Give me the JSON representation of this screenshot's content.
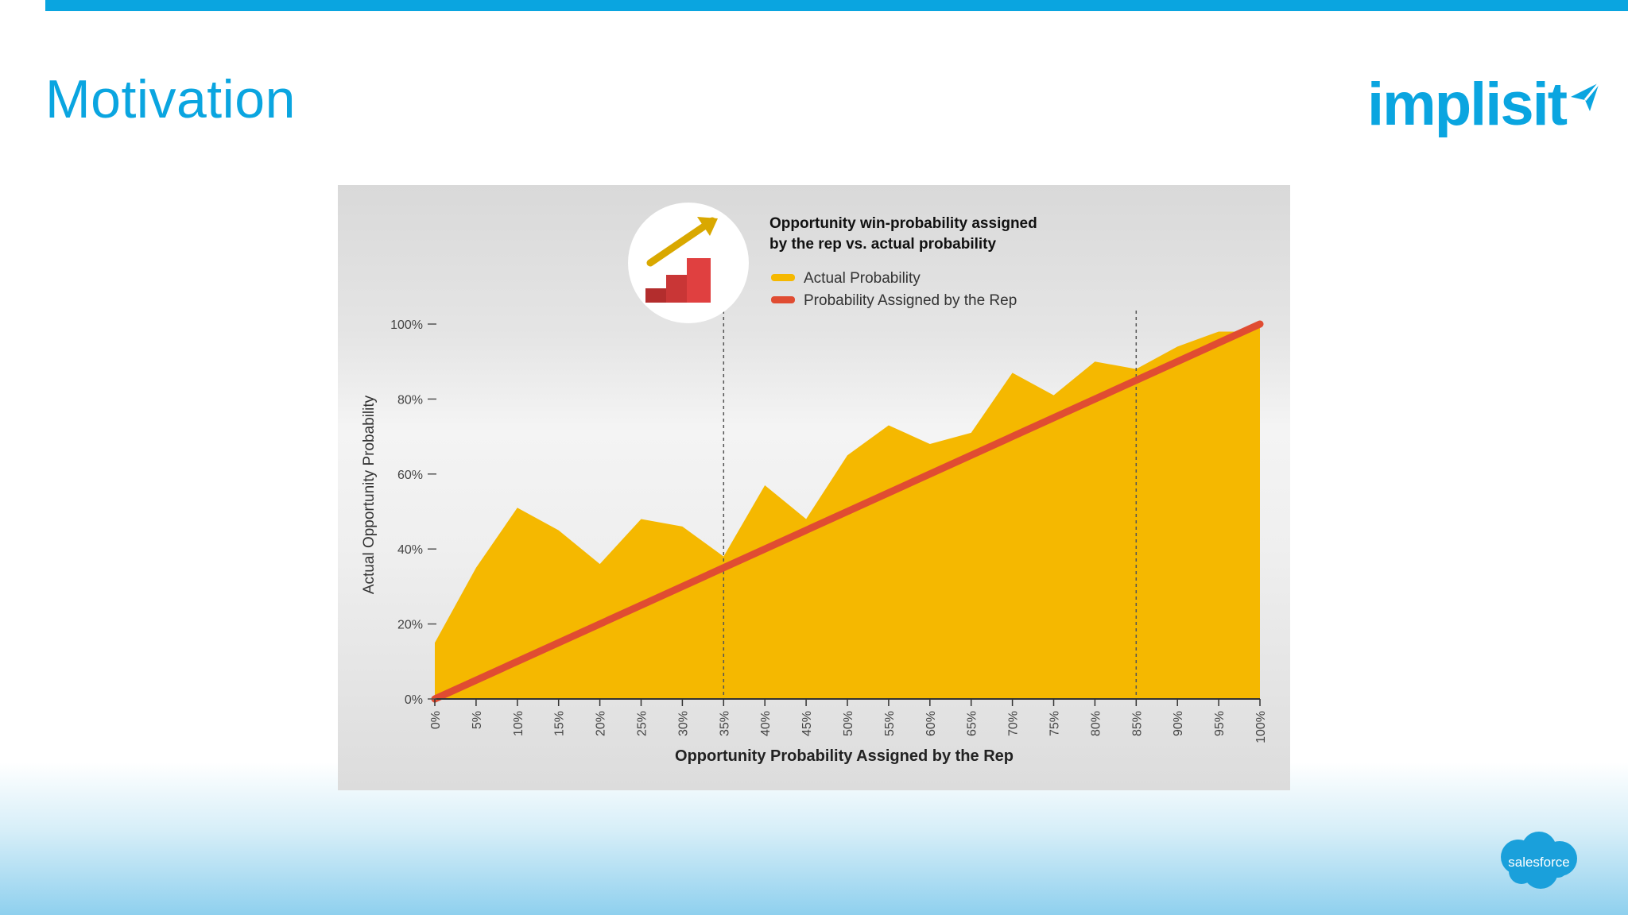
{
  "slide": {
    "title": "Motivation",
    "logo_text": "implisit",
    "footer_logo_text": "salesforce"
  },
  "colors": {
    "accent": "#0aa5e0",
    "actual": "#f5b800",
    "assigned": "#e04c32"
  },
  "chart_data": {
    "type": "area",
    "title": "Opportunity win-probability assigned by the rep vs. actual probability",
    "title_lines": [
      "Opportunity win-probability assigned",
      "by the rep vs. actual probability"
    ],
    "xlabel": "Opportunity Probability Assigned by the Rep",
    "ylabel": "Actual Opportunity Probability",
    "x": [
      0,
      5,
      10,
      15,
      20,
      25,
      30,
      35,
      40,
      45,
      50,
      55,
      60,
      65,
      70,
      75,
      80,
      85,
      90,
      95,
      100
    ],
    "x_tick_labels": [
      "0%",
      "5%",
      "10%",
      "15%",
      "20%",
      "25%",
      "30%",
      "35%",
      "40%",
      "45%",
      "50%",
      "55%",
      "60%",
      "65%",
      "70%",
      "75%",
      "80%",
      "85%",
      "90%",
      "95%",
      "100%"
    ],
    "y_ticks": [
      0,
      20,
      40,
      60,
      80,
      100
    ],
    "y_tick_labels": [
      "0%",
      "20%",
      "40%",
      "60%",
      "80%",
      "100%"
    ],
    "xlim": [
      0,
      100
    ],
    "ylim": [
      0,
      100
    ],
    "legend": "top-center",
    "reference_lines_x": [
      35,
      85
    ],
    "series": [
      {
        "name": "Actual Probability",
        "type": "area",
        "x": [
          0,
          5,
          10,
          15,
          20,
          25,
          30,
          35,
          40,
          45,
          50,
          55,
          60,
          65,
          70,
          75,
          80,
          85,
          90,
          95,
          97,
          100
        ],
        "values": [
          15,
          35,
          51,
          45,
          36,
          48,
          46,
          38,
          57,
          48,
          65,
          73,
          68,
          71,
          87,
          81,
          90,
          88,
          94,
          98,
          98,
          100
        ]
      },
      {
        "name": "Probability Assigned by the Rep",
        "type": "line",
        "x": [
          0,
          100
        ],
        "values": [
          0,
          100
        ]
      }
    ]
  }
}
